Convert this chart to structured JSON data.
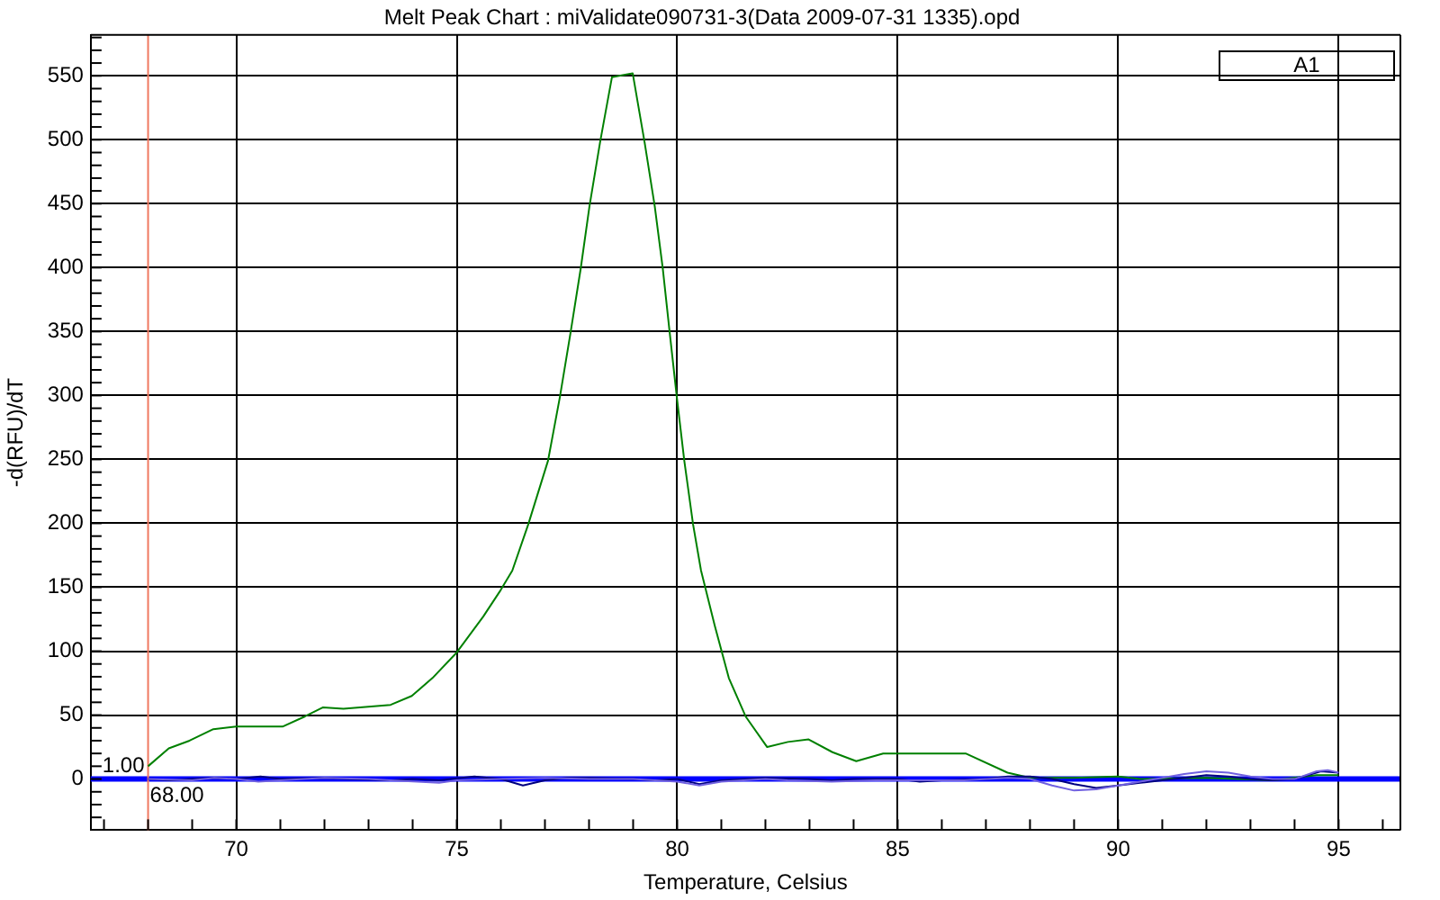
{
  "chart_data": {
    "type": "line",
    "title": "Melt Peak Chart : miValidate090731-3(Data 2009-07-31 1335).opd",
    "xlabel": "Temperature, Celsius",
    "ylabel": "-d(RFU)/dT",
    "xlim": [
      66.7,
      96.4
    ],
    "xticks": [
      {
        "value": 67,
        "label": null
      },
      {
        "value": 68,
        "label": null
      },
      {
        "value": 69,
        "label": null
      },
      70,
      {
        "value": 71,
        "label": null
      },
      {
        "value": 72,
        "label": null
      },
      {
        "value": 73,
        "label": null
      },
      {
        "value": 74,
        "label": null
      },
      75,
      {
        "value": 76,
        "label": null
      },
      {
        "value": 77,
        "label": null
      },
      {
        "value": 78,
        "label": null
      },
      {
        "value": 79,
        "label": null
      },
      80,
      {
        "value": 81,
        "label": null
      },
      {
        "value": 82,
        "label": null
      },
      {
        "value": 83,
        "label": null
      },
      {
        "value": 84,
        "label": null
      },
      85,
      {
        "value": 86,
        "label": null
      },
      {
        "value": 87,
        "label": null
      },
      {
        "value": 88,
        "label": null
      },
      {
        "value": 89,
        "label": null
      },
      90,
      {
        "value": 91,
        "label": null
      },
      {
        "value": 92,
        "label": null
      },
      {
        "value": 93,
        "label": null
      },
      {
        "value": 94,
        "label": null
      },
      95,
      {
        "value": 96,
        "label": null
      }
    ],
    "ylim": [
      -40,
      582
    ],
    "yticks": [
      {
        "value": -30,
        "label": null
      },
      {
        "value": -20,
        "label": null
      },
      {
        "value": -10,
        "label": null
      },
      0,
      {
        "value": 10,
        "label": null
      },
      {
        "value": 20,
        "label": null
      },
      {
        "value": 30,
        "label": null
      },
      {
        "value": 40,
        "label": null
      },
      50,
      {
        "value": 60,
        "label": null
      },
      {
        "value": 70,
        "label": null
      },
      {
        "value": 80,
        "label": null
      },
      {
        "value": 90,
        "label": null
      },
      100,
      {
        "value": 110,
        "label": null
      },
      {
        "value": 120,
        "label": null
      },
      {
        "value": 130,
        "label": null
      },
      {
        "value": 140,
        "label": null
      },
      150,
      {
        "value": 160,
        "label": null
      },
      {
        "value": 170,
        "label": null
      },
      {
        "value": 180,
        "label": null
      },
      {
        "value": 190,
        "label": null
      },
      200,
      {
        "value": 210,
        "label": null
      },
      {
        "value": 220,
        "label": null
      },
      {
        "value": 230,
        "label": null
      },
      {
        "value": 240,
        "label": null
      },
      250,
      {
        "value": 260,
        "label": null
      },
      {
        "value": 270,
        "label": null
      },
      {
        "value": 280,
        "label": null
      },
      {
        "value": 290,
        "label": null
      },
      300,
      {
        "value": 310,
        "label": null
      },
      {
        "value": 320,
        "label": null
      },
      {
        "value": 330,
        "label": null
      },
      {
        "value": 340,
        "label": null
      },
      350,
      {
        "value": 360,
        "label": null
      },
      {
        "value": 370,
        "label": null
      },
      {
        "value": 380,
        "label": null
      },
      {
        "value": 390,
        "label": null
      },
      400,
      {
        "value": 410,
        "label": null
      },
      {
        "value": 420,
        "label": null
      },
      {
        "value": 430,
        "label": null
      },
      {
        "value": 440,
        "label": null
      },
      450,
      {
        "value": 460,
        "label": null
      },
      {
        "value": 470,
        "label": null
      },
      {
        "value": 480,
        "label": null
      },
      {
        "value": 490,
        "label": null
      },
      500,
      {
        "value": 510,
        "label": null
      },
      {
        "value": 520,
        "label": null
      },
      {
        "value": 530,
        "label": null
      },
      {
        "value": 540,
        "label": null
      },
      550,
      {
        "value": 560,
        "label": null
      },
      {
        "value": 570,
        "label": null
      },
      {
        "value": 580,
        "label": null
      }
    ],
    "grid": true,
    "legend": false,
    "marker": "none",
    "series": [
      {
        "color": "#7060e0",
        "x": [
          68,
          69,
          69.5,
          70,
          70.5,
          71,
          72,
          73,
          73.5,
          74.6,
          75,
          76,
          77,
          78,
          79,
          79.5,
          80,
          80.5,
          81,
          82,
          82.5,
          83.5,
          84.5,
          85.5,
          86.5,
          87.5,
          88,
          88.5,
          89,
          89.5,
          90,
          90.5,
          91,
          91.5,
          92,
          92.5,
          93,
          93.5,
          94,
          94.5,
          94.75,
          95
        ],
        "values": [
          0,
          -1,
          1,
          0,
          -2,
          -1,
          1,
          0,
          -1,
          -3,
          -1,
          0,
          1,
          0,
          0,
          -1,
          -2,
          -5,
          -2,
          0,
          -1,
          -2,
          -1,
          -1,
          -1,
          1,
          0,
          -5,
          -9,
          -8,
          -5,
          -2,
          1,
          4,
          6,
          5,
          2,
          0,
          0,
          6,
          7,
          5
        ]
      },
      {
        "color": "#000080",
        "x": [
          68,
          68.5,
          69,
          69.5,
          70,
          70.55,
          71,
          72,
          72.5,
          73.5,
          74,
          74.6,
          75.4,
          76,
          76.5,
          77,
          77.5,
          78,
          79,
          79.5,
          80,
          80.5,
          81,
          82,
          83,
          83.5,
          84,
          85,
          85.5,
          86,
          87,
          87.5,
          88,
          88.5,
          89,
          89.5,
          90,
          90.5,
          91,
          91.5,
          92,
          92.5,
          93,
          93.5,
          94,
          94.6,
          95
        ],
        "values": [
          0,
          -1,
          0,
          1,
          0,
          2,
          0,
          1,
          0,
          -1,
          0,
          -1,
          2,
          0,
          -5,
          -1,
          1,
          1,
          0,
          -1,
          0,
          -4,
          -1,
          1,
          0,
          -1,
          0,
          0,
          -2,
          -1,
          0,
          2,
          2,
          0,
          -4,
          -7,
          -5,
          -3,
          -1,
          1,
          3,
          2,
          0,
          -1,
          0,
          6,
          5
        ]
      },
      {
        "color": "#008000",
        "x": [
          68,
          68.47,
          68.94,
          69.48,
          70,
          71.05,
          71.56,
          71.96,
          72.43,
          73.5,
          73.98,
          74.45,
          75,
          75.6,
          76,
          76.26,
          76.62,
          77.07,
          77.34,
          77.58,
          77.81,
          78.01,
          78.25,
          78.52,
          78.68,
          78.99,
          79.26,
          79.49,
          79.67,
          79.83,
          79.99,
          80.16,
          80.36,
          80.54,
          80.85,
          81.17,
          81.55,
          82.04,
          82.51,
          82.98,
          83.52,
          84.06,
          84.67,
          86.54,
          87.49,
          88,
          89,
          90,
          90.5,
          92,
          93.5,
          94.5,
          95
        ],
        "values": [
          10,
          24,
          30,
          39,
          41,
          41,
          49,
          56,
          55,
          58,
          65,
          79,
          99,
          127,
          148,
          163,
          199,
          249,
          299,
          349,
          399,
          448,
          498,
          549,
          550,
          552,
          498,
          448,
          400,
          349,
          299,
          249,
          199,
          163,
          120,
          79,
          49,
          25,
          29,
          31,
          21,
          14,
          20,
          20,
          5,
          1,
          1,
          2,
          0,
          1,
          -1,
          3,
          3
        ]
      }
    ],
    "ref_lines": [
      {
        "axis": "y",
        "value": 0,
        "color": "#0000ff"
      },
      {
        "axis": "x",
        "value": 68,
        "label": "68.00",
        "color": "#f07860"
      }
    ],
    "annotations": [
      {
        "text": "1.00",
        "x": 68,
        "y": 10
      },
      "A1"
    ]
  }
}
